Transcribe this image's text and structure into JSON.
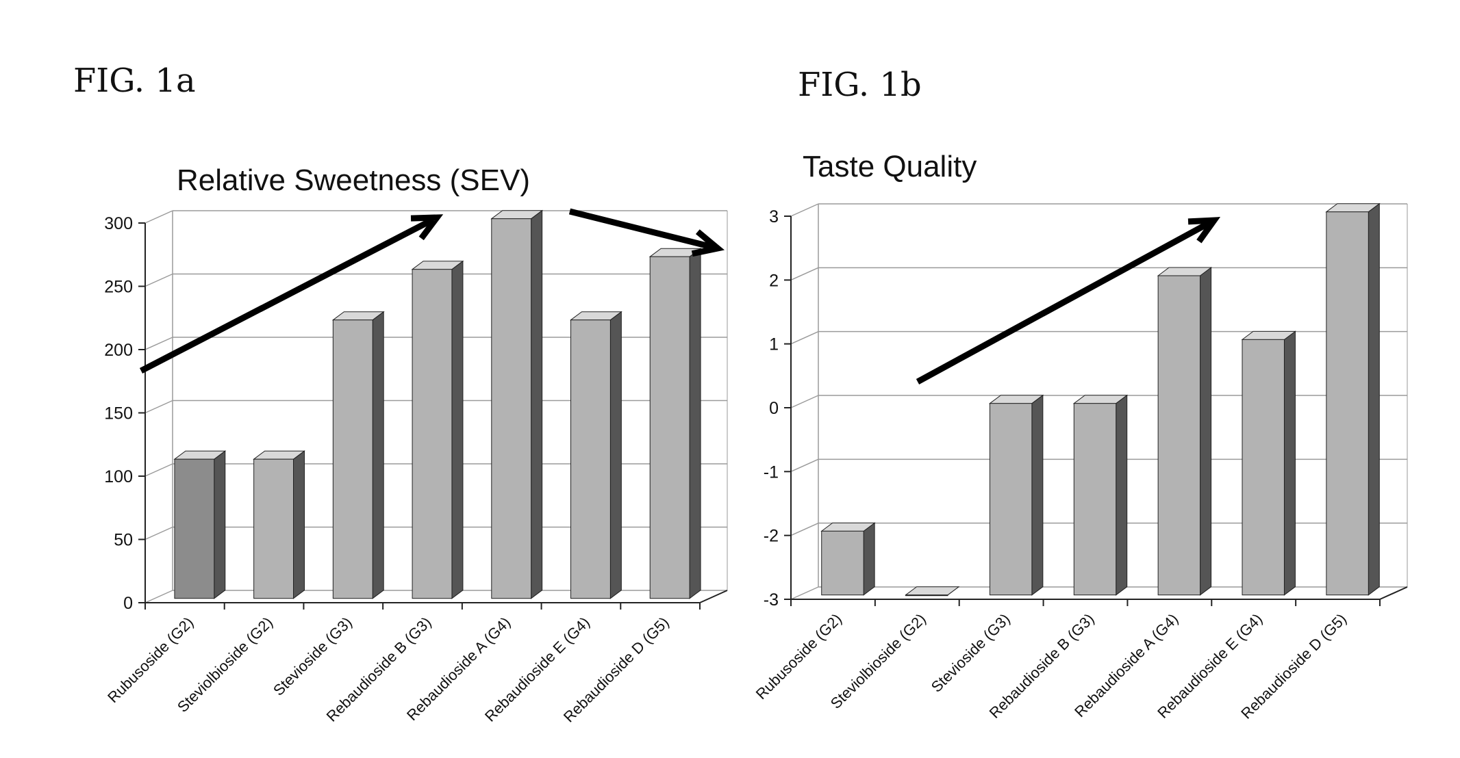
{
  "figures": {
    "fig_a_label": "FIG. 1a",
    "fig_b_label": "FIG. 1b"
  },
  "colors": {
    "bar_front": "#b3b3b3",
    "bar_front_first": "#8c8c8c",
    "bar_side": "#555555",
    "bar_top": "#d9d9d9",
    "grid": "#9a9a9a",
    "axis": "#222222",
    "arrow": "#000000"
  },
  "chart_data": [
    {
      "type": "bar",
      "title": "Relative Sweetness (SEV)",
      "categories": [
        "Rubusoside (G2)",
        "Steviolbioside (G2)",
        "Stevioside (G3)",
        "Rebaudioside B (G3)",
        "Rebaudioside A (G4)",
        "Rebaudioside E (G4)",
        "Rebaudioside D (G5)"
      ],
      "values": [
        110,
        110,
        220,
        260,
        300,
        220,
        270
      ],
      "ylim": [
        0,
        300
      ],
      "yticks": [
        "0",
        "50",
        "100",
        "150",
        "200",
        "250",
        "300"
      ],
      "grid": true,
      "legend": "none",
      "style": "3d"
    },
    {
      "type": "bar",
      "title": "Taste Quality",
      "categories": [
        "Rubusoside (G2)",
        "Steviolbioside (G2)",
        "Stevioside (G3)",
        "Rebaudioside B (G3)",
        "Rebaudioside A (G4)",
        "Rebaudioside E (G4)",
        "Rebaudioside D (G5)"
      ],
      "values": [
        -2,
        -3,
        0,
        0,
        2,
        1,
        3
      ],
      "ylim": [
        -3,
        3
      ],
      "yticks": [
        "-3",
        "-2",
        "-1",
        "0",
        "1",
        "2",
        "3"
      ],
      "grid": true,
      "legend": "none",
      "style": "3d"
    }
  ]
}
